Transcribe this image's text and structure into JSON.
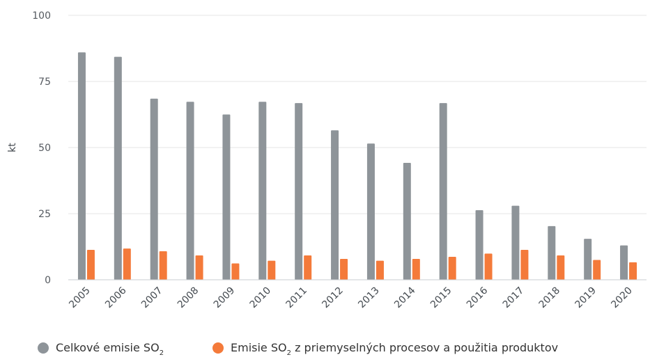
{
  "chart_data": {
    "type": "bar",
    "ylabel": "kt",
    "ylim": [
      0,
      100
    ],
    "yticks": [
      0,
      25,
      50,
      75,
      100
    ],
    "categories": [
      "2005",
      "2006",
      "2007",
      "2008",
      "2009",
      "2010",
      "2011",
      "2012",
      "2013",
      "2014",
      "2015",
      "2016",
      "2017",
      "2018",
      "2019",
      "2020"
    ],
    "series": [
      {
        "name": "Celkové emisie SO",
        "subscript": "2",
        "color": "#8e9499",
        "values": [
          86,
          84.3,
          68.5,
          67.3,
          62.5,
          67.3,
          66.8,
          56.5,
          51.5,
          44.2,
          66.8,
          26.3,
          28,
          20.3,
          15.5,
          13
        ]
      },
      {
        "name": "Emisie SO",
        "subscript": "2",
        "name_suffix": " z priemyselných procesov a použitia produktov",
        "color": "#f47a3a",
        "values": [
          11.3,
          11.8,
          10.8,
          9.2,
          6.2,
          7.2,
          9.2,
          7.9,
          7.2,
          7.9,
          8.7,
          9.9,
          11.3,
          9.2,
          7.5,
          6.6
        ]
      }
    ],
    "grid": true,
    "legend": "bottom-left"
  }
}
